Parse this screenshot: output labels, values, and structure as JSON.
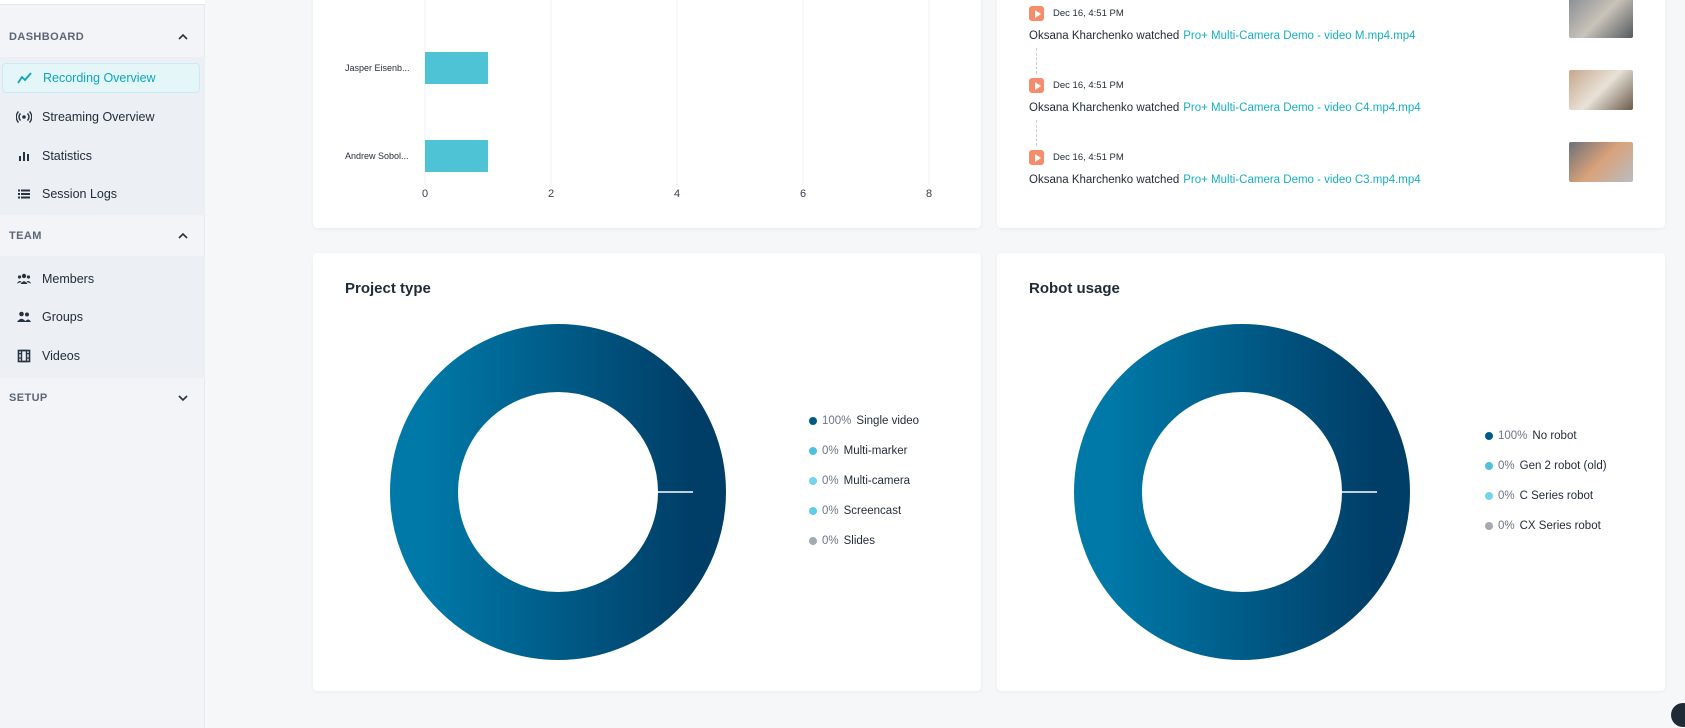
{
  "sidebar": {
    "sections": [
      {
        "title": "DASHBOARD",
        "expanded": true,
        "items": [
          {
            "label": "Recording Overview",
            "icon": "trend-line-icon",
            "active": true
          },
          {
            "label": "Streaming Overview",
            "icon": "broadcast-icon",
            "active": false
          },
          {
            "label": "Statistics",
            "icon": "bar-chart-icon",
            "active": false
          },
          {
            "label": "Session Logs",
            "icon": "list-icon",
            "active": false
          }
        ]
      },
      {
        "title": "TEAM",
        "expanded": true,
        "items": [
          {
            "label": "Members",
            "icon": "members-icon"
          },
          {
            "label": "Groups",
            "icon": "groups-icon"
          },
          {
            "label": "Videos",
            "icon": "film-icon"
          }
        ]
      },
      {
        "title": "SETUP",
        "expanded": false,
        "items": []
      }
    ]
  },
  "bar_card": {
    "chart_data": {
      "type": "bar",
      "orientation": "horizontal",
      "categories": [
        "Jasper Eisenb...",
        "Andrew Sobol..."
      ],
      "values": [
        1,
        1
      ],
      "xticks": [
        "0",
        "2",
        "4",
        "6",
        "8"
      ],
      "xlim": [
        0,
        8
      ],
      "grid": true,
      "color": "#4fc3d6"
    }
  },
  "activity": {
    "items": [
      {
        "time": "Dec 16, 4:51 PM",
        "user": "Oksana Kharchenko",
        "action": "watched",
        "link": "Pro+ Multi-Camera Demo - video M.mp4.mp4"
      },
      {
        "time": "Dec 16, 4:51 PM",
        "user": "Oksana Kharchenko",
        "action": "watched",
        "link": "Pro+ Multi-Camera Demo - video C4.mp4.mp4"
      },
      {
        "time": "Dec 16, 4:51 PM",
        "user": "Oksana Kharchenko",
        "action": "watched",
        "link": "Pro+ Multi-Camera Demo - video C3.mp4.mp4"
      }
    ]
  },
  "project_type": {
    "title": "Project type",
    "chart_data": {
      "type": "pie",
      "labels": [
        "Single video",
        "Multi-marker",
        "Multi-camera",
        "Screencast",
        "Slides"
      ],
      "percent_labels": [
        "100%",
        "0%",
        "0%",
        "0%",
        "0%"
      ],
      "values": [
        100,
        0,
        0,
        0,
        0
      ],
      "colors": [
        "#005a87",
        "#4fc0dd",
        "#73d3ec",
        "#5fcde8",
        "#a4aab2"
      ]
    }
  },
  "robot_usage": {
    "title": "Robot usage",
    "chart_data": {
      "type": "pie",
      "labels": [
        "No robot",
        "Gen 2 robot (old)",
        "C Series robot",
        "CX Series robot"
      ],
      "percent_labels": [
        "100%",
        "0%",
        "0%",
        "0%"
      ],
      "values": [
        100,
        0,
        0,
        0
      ],
      "colors": [
        "#005a87",
        "#4fc0dd",
        "#73d3ec",
        "#a4aab2"
      ]
    }
  },
  "theme": {
    "accent": "#0ba6bd",
    "link": "#15aec4",
    "play": "#f58c6c",
    "donut_dark": "#003e67",
    "donut_light": "#0079a8"
  }
}
